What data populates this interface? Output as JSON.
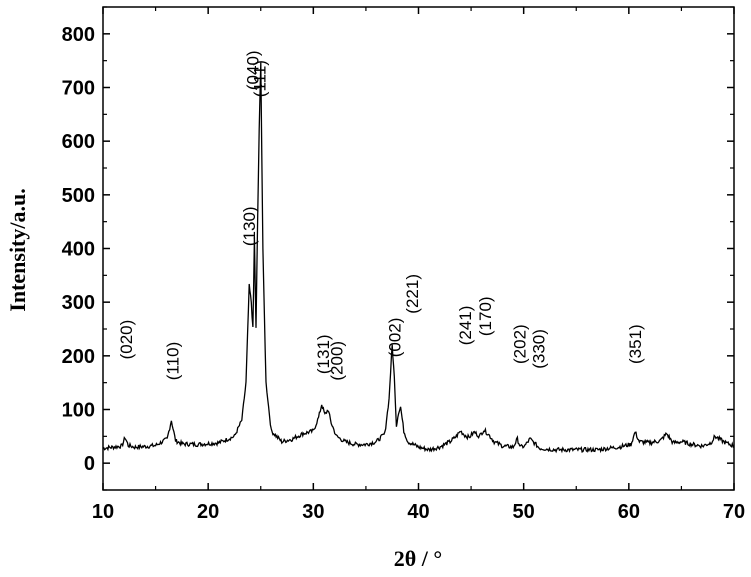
{
  "chart_data": {
    "type": "line",
    "xlabel": "2θ / °",
    "ylabel": "Intensity/a.u.",
    "xlim": [
      10,
      70
    ],
    "ylim": [
      -50,
      850
    ],
    "x_ticks": [
      10,
      20,
      30,
      40,
      50,
      60,
      70
    ],
    "y_ticks": [
      0,
      100,
      200,
      300,
      400,
      500,
      600,
      700,
      800
    ],
    "grid": false,
    "series": [
      {
        "x": [
          10,
          11,
          11.8,
          12.1,
          12.4,
          13,
          14,
          15,
          16.1,
          16.5,
          16.9,
          17.5,
          19,
          21,
          22.5,
          23.2,
          23.6,
          23.9,
          24.1,
          24.25,
          24.4,
          24.55,
          24.7,
          24.85,
          25.0,
          25.2,
          25.5,
          26,
          27,
          28,
          29,
          30,
          30.5,
          30.8,
          31.1,
          31.4,
          31.7,
          32.2,
          33,
          34,
          35,
          36,
          36.8,
          37.2,
          37.5,
          37.7,
          37.9,
          38.1,
          38.3,
          38.6,
          39,
          40,
          41,
          42,
          43,
          43.6,
          44.0,
          44.4,
          44.8,
          45.3,
          45.8,
          46.2,
          46.6,
          47.2,
          48,
          49,
          49.4,
          49.7,
          50.1,
          50.6,
          51.0,
          51.5,
          53,
          55,
          57,
          59,
          60.2,
          60.6,
          61.0,
          62,
          63,
          63.6,
          64.2,
          65,
          66,
          67,
          67.8,
          68.2,
          68.6,
          69.2,
          70
        ],
        "y": [
          28,
          30,
          32,
          48,
          33,
          30,
          31,
          33,
          45,
          80,
          42,
          36,
          35,
          38,
          50,
          80,
          150,
          330,
          300,
          250,
          420,
          250,
          450,
          620,
          750,
          400,
          150,
          60,
          40,
          45,
          55,
          60,
          85,
          110,
          90,
          100,
          75,
          50,
          40,
          35,
          35,
          40,
          55,
          120,
          220,
          160,
          70,
          95,
          105,
          60,
          40,
          30,
          25,
          30,
          40,
          50,
          60,
          52,
          48,
          58,
          50,
          62,
          55,
          40,
          32,
          30,
          45,
          30,
          32,
          45,
          38,
          28,
          25,
          25,
          25,
          30,
          35,
          58,
          40,
          38,
          42,
          55,
          38,
          40,
          35,
          32,
          38,
          50,
          45,
          38,
          32
        ]
      }
    ],
    "annotations": [
      {
        "text": "(020)",
        "x": 12.1
      },
      {
        "text": "(110)",
        "x": 16.5
      },
      {
        "text": "(130)",
        "x": 23.9
      },
      {
        "text": "(040)",
        "x": 24.2
      },
      {
        "text": "(111)",
        "x": 24.9
      },
      {
        "text": "(131)",
        "x": 30.8
      },
      {
        "text": "(200)",
        "x": 31.8
      },
      {
        "text": "(002)",
        "x": 37.7
      },
      {
        "text": "(221)",
        "x": 38.7
      },
      {
        "text": "(241)",
        "x": 44.4
      },
      {
        "text": "(170)",
        "x": 46.0
      },
      {
        "text": "(202)",
        "x": 49.4
      },
      {
        "text": "(330)",
        "x": 50.9
      },
      {
        "text": "(351)",
        "x": 60.6
      }
    ]
  }
}
